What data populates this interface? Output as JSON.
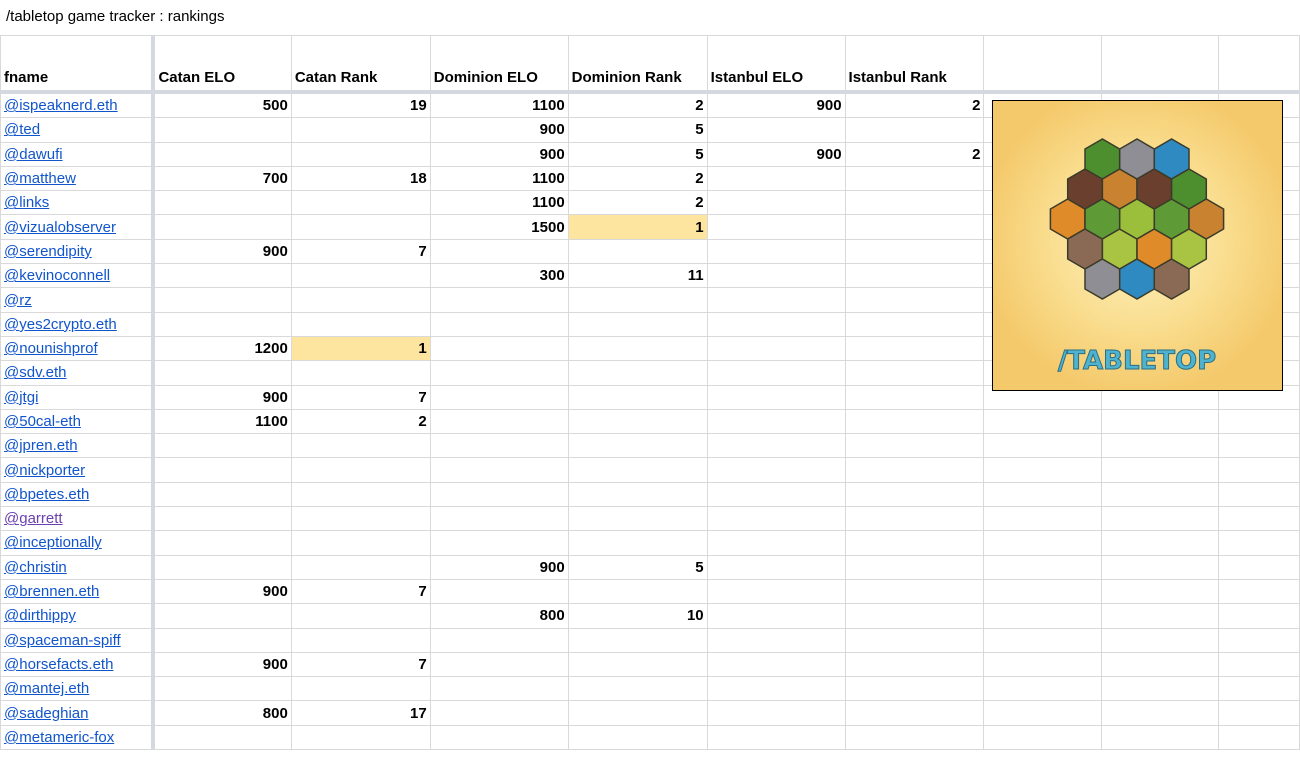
{
  "title": "/tabletop game tracker : rankings",
  "columns": [
    "fname",
    "Catan ELO",
    "Catan Rank",
    "Dominion ELO",
    "Dominion Rank",
    "Istanbul ELO",
    "Istanbul Rank",
    "",
    "",
    ""
  ],
  "colors": {
    "link": "#1155cc",
    "visited_link": "#6a3fb0",
    "highlight": "#fde59f",
    "grid": "#d9d9d9"
  },
  "rows": [
    {
      "fname": "@ispeaknerd.eth",
      "catan_elo": "500",
      "catan_rank": "19",
      "dominion_elo": "1100",
      "dominion_rank": "2",
      "istanbul_elo": "900",
      "istanbul_rank": "2"
    },
    {
      "fname": "@ted",
      "dominion_elo": "900",
      "dominion_rank": "5"
    },
    {
      "fname": "@dawufi",
      "dominion_elo": "900",
      "dominion_rank": "5",
      "istanbul_elo": "900",
      "istanbul_rank": "2"
    },
    {
      "fname": "@matthew",
      "catan_elo": "700",
      "catan_rank": "18",
      "dominion_elo": "1100",
      "dominion_rank": "2"
    },
    {
      "fname": "@links",
      "dominion_elo": "1100",
      "dominion_rank": "2"
    },
    {
      "fname": "@vizualobserver",
      "dominion_elo": "1500",
      "dominion_rank": "1",
      "highlight": "dominion_rank"
    },
    {
      "fname": "@serendipity",
      "catan_elo": "900",
      "catan_rank": "7"
    },
    {
      "fname": "@kevinoconnell",
      "dominion_elo": "300",
      "dominion_rank": "11"
    },
    {
      "fname": "@rz"
    },
    {
      "fname": "@yes2crypto.eth"
    },
    {
      "fname": "@nounishprof",
      "catan_elo": "1200",
      "catan_rank": "1",
      "highlight": "catan_rank"
    },
    {
      "fname": "@sdv.eth"
    },
    {
      "fname": "@jtgi",
      "catan_elo": "900",
      "catan_rank": "7"
    },
    {
      "fname": "@50cal-eth",
      "catan_elo": "1100",
      "catan_rank": "2"
    },
    {
      "fname": "@jpren.eth"
    },
    {
      "fname": "@nickporter"
    },
    {
      "fname": "@bpetes.eth"
    },
    {
      "fname": "@garrett",
      "visited": true
    },
    {
      "fname": "@inceptionally"
    },
    {
      "fname": "@christin",
      "dominion_elo": "900",
      "dominion_rank": "5"
    },
    {
      "fname": "@brennen.eth",
      "catan_elo": "900",
      "catan_rank": "7"
    },
    {
      "fname": "@dirthippy",
      "dominion_elo": "800",
      "dominion_rank": "10"
    },
    {
      "fname": "@spaceman-spiff"
    },
    {
      "fname": "@horsefacts.eth",
      "catan_elo": "900",
      "catan_rank": "7"
    },
    {
      "fname": "@mantej.eth"
    },
    {
      "fname": "@sadeghian",
      "catan_elo": "800",
      "catan_rank": "17"
    },
    {
      "fname": "@metameric-fox"
    }
  ],
  "logo": {
    "text": "/TABLETOP",
    "image": "catan-board-illustration"
  }
}
